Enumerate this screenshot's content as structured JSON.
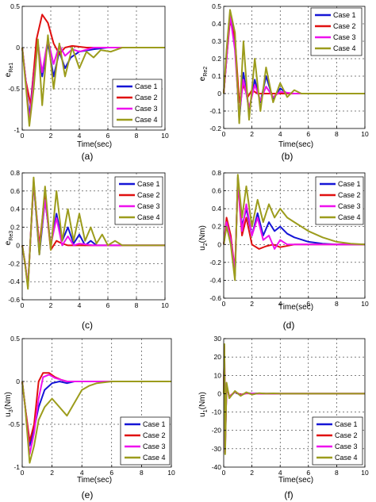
{
  "figure": {
    "panels": [
      {
        "caption": "(a)",
        "xlabel": "Time(sec)",
        "ylabel": "e_{Re1}",
        "ylabel_main": "e",
        "ylabel_sub": "Re1"
      },
      {
        "caption": "(b)",
        "xlabel": "Time(sec)",
        "ylabel": "e_{Re2}",
        "ylabel_main": "e",
        "ylabel_sub": "Re2"
      },
      {
        "caption": "(c)",
        "xlabel": "",
        "ylabel": "e_{Re3}",
        "ylabel_main": "e",
        "ylabel_sub": "Re3"
      },
      {
        "caption": "(d)",
        "xlabel": "Time(sec)",
        "ylabel": "u_2(Nm)",
        "ylabel_main": "u",
        "ylabel_sub": "2",
        "ylabel_tail": "(Nm)"
      },
      {
        "caption": "(e)",
        "xlabel": "Time(sec)",
        "ylabel": "u_3(Nm)",
        "ylabel_main": "u",
        "ylabel_sub": "3",
        "ylabel_tail": "(Nm)"
      },
      {
        "caption": "(f)",
        "xlabel": "Time(sec)",
        "ylabel": "u_1(Nm)",
        "ylabel_main": "u",
        "ylabel_sub": "1",
        "ylabel_tail": "(Nm)"
      }
    ]
  },
  "colors": {
    "case1": "#1515d6",
    "case2": "#e01010",
    "case3": "#ee11ee",
    "case4": "#9c9c1c",
    "grid": "#000000",
    "axes": "#000000"
  },
  "chart_data": [
    {
      "type": "line",
      "caption": "(a)",
      "xlabel": "Time(sec)",
      "ylabel": "e_{Re1}",
      "xlim": [
        0,
        10
      ],
      "ylim": [
        -1,
        0.5
      ],
      "xticks": [
        "0",
        "2",
        "4",
        "6",
        "8",
        "10"
      ],
      "yticks": [
        "-1",
        "-0.5",
        "0",
        "0.5"
      ],
      "grid": true,
      "legend_position": "bottom-right",
      "series": [
        {
          "name": "Case 1",
          "x": [
            0,
            0.25,
            0.5,
            0.8,
            1.1,
            1.4,
            1.8,
            2.2,
            2.6,
            3.0,
            3.4,
            4.0,
            5,
            6,
            10
          ],
          "y": [
            0,
            -0.4,
            -0.85,
            -0.3,
            0.05,
            -0.35,
            0.05,
            -0.35,
            -0.05,
            -0.25,
            -0.12,
            -0.05,
            -0.02,
            0,
            0
          ]
        },
        {
          "name": "Case 2",
          "x": [
            0,
            0.25,
            0.6,
            1.0,
            1.4,
            1.8,
            2.2,
            2.6,
            3.0,
            3.5,
            4.5,
            5.5,
            10
          ],
          "y": [
            0,
            -0.4,
            -0.7,
            0.1,
            0.4,
            0.3,
            0.05,
            -0.08,
            0.0,
            0.02,
            0,
            0,
            0
          ]
        },
        {
          "name": "Case 3",
          "x": [
            0,
            0.25,
            0.5,
            0.8,
            1.1,
            1.4,
            1.8,
            2.2,
            2.6,
            3.0,
            3.5,
            4.0,
            5,
            6,
            10
          ],
          "y": [
            0,
            -0.4,
            -0.9,
            -0.4,
            0.05,
            -0.3,
            0.1,
            -0.2,
            0.03,
            -0.1,
            -0.02,
            -0.05,
            0,
            0,
            0
          ]
        },
        {
          "name": "Case 4",
          "x": [
            0,
            0.25,
            0.5,
            0.8,
            1.1,
            1.4,
            1.8,
            2.2,
            2.6,
            3.0,
            3.5,
            4.0,
            4.5,
            5.0,
            5.5,
            6.2,
            7,
            10
          ],
          "y": [
            0,
            -0.45,
            -0.95,
            -0.5,
            0.1,
            -0.7,
            0.15,
            -0.5,
            0.05,
            -0.35,
            0.0,
            -0.25,
            -0.05,
            -0.12,
            -0.03,
            -0.05,
            0,
            0
          ]
        }
      ]
    },
    {
      "type": "line",
      "caption": "(b)",
      "xlabel": "Time(sec)",
      "ylabel": "e_{Re2}",
      "xlim": [
        0,
        10
      ],
      "ylim": [
        -0.2,
        0.5
      ],
      "xticks": [
        "0",
        "2",
        "4",
        "6",
        "8",
        "10"
      ],
      "yticks": [
        "-0.2",
        "-0.1",
        "0",
        "0.1",
        "0.2",
        "0.3",
        "0.4",
        "0.5"
      ],
      "grid": true,
      "legend_position": "top-right",
      "series": [
        {
          "name": "Case 1",
          "x": [
            0,
            0.2,
            0.45,
            0.8,
            1.1,
            1.4,
            1.8,
            2.2,
            2.6,
            3.0,
            3.5,
            4.0,
            4.5,
            5.5,
            10
          ],
          "y": [
            0,
            0.2,
            0.45,
            0.3,
            -0.15,
            0.12,
            -0.1,
            0.08,
            -0.05,
            0.1,
            -0.03,
            0.03,
            0.0,
            0,
            0
          ]
        },
        {
          "name": "Case 2",
          "x": [
            0,
            0.2,
            0.45,
            0.8,
            1.1,
            1.4,
            1.7,
            2.0,
            2.4,
            3.0,
            4,
            10
          ],
          "y": [
            0,
            0.2,
            0.42,
            0.32,
            -0.05,
            0.05,
            -0.02,
            0.02,
            0.0,
            0,
            0,
            0
          ]
        },
        {
          "name": "Case 3",
          "x": [
            0,
            0.2,
            0.45,
            0.8,
            1.1,
            1.4,
            1.8,
            2.2,
            2.6,
            3.0,
            3.5,
            4.0,
            5,
            10
          ],
          "y": [
            0,
            0.2,
            0.45,
            0.25,
            -0.12,
            0.08,
            -0.08,
            0.05,
            -0.04,
            0.04,
            -0.02,
            0.01,
            0,
            0
          ]
        },
        {
          "name": "Case 4",
          "x": [
            0,
            0.2,
            0.45,
            0.8,
            1.1,
            1.4,
            1.8,
            2.2,
            2.6,
            3.0,
            3.5,
            4.0,
            4.5,
            5.0,
            5.5,
            10
          ],
          "y": [
            0,
            0.25,
            0.48,
            0.35,
            -0.17,
            0.3,
            -0.15,
            0.2,
            -0.1,
            0.15,
            -0.05,
            0.06,
            -0.02,
            0.02,
            0,
            0
          ]
        }
      ]
    },
    {
      "type": "line",
      "caption": "(c)",
      "xlabel": "",
      "ylabel": "e_{Re3}",
      "xlim": [
        0,
        10
      ],
      "ylim": [
        -0.6,
        0.8
      ],
      "xticks": [
        "0",
        "2",
        "4",
        "6",
        "8",
        "10"
      ],
      "yticks": [
        "-0.6",
        "-0.4",
        "-0.2",
        "0",
        "0.2",
        "0.4",
        "0.6",
        "0.8"
      ],
      "grid": true,
      "legend_position": "top-right",
      "series": [
        {
          "name": "Case 1",
          "x": [
            0,
            0.2,
            0.4,
            0.8,
            1.2,
            1.6,
            2.0,
            2.4,
            2.8,
            3.2,
            3.6,
            4.0,
            4.4,
            4.8,
            5.2,
            6.0,
            10
          ],
          "y": [
            0,
            -0.2,
            -0.45,
            0.7,
            -0.1,
            0.5,
            0.0,
            0.35,
            0.05,
            0.2,
            0.02,
            0.12,
            0.0,
            0.05,
            0.0,
            0,
            0
          ]
        },
        {
          "name": "Case 2",
          "x": [
            0,
            0.2,
            0.4,
            0.8,
            1.2,
            1.6,
            2.0,
            2.4,
            2.8,
            3.2,
            4.0,
            5.0,
            10
          ],
          "y": [
            0,
            -0.2,
            -0.45,
            0.7,
            0.0,
            0.55,
            -0.05,
            0.05,
            0.02,
            0.0,
            0,
            0,
            0
          ]
        },
        {
          "name": "Case 3",
          "x": [
            0,
            0.2,
            0.4,
            0.8,
            1.2,
            1.6,
            2.0,
            2.4,
            2.8,
            3.2,
            3.6,
            4.0,
            5.0,
            10
          ],
          "y": [
            0,
            -0.2,
            -0.45,
            0.72,
            -0.05,
            0.5,
            0.0,
            0.3,
            0.0,
            0.1,
            0.0,
            0.02,
            0,
            0
          ]
        },
        {
          "name": "Case 4",
          "x": [
            0,
            0.2,
            0.4,
            0.8,
            1.2,
            1.6,
            2.0,
            2.4,
            2.8,
            3.2,
            3.6,
            4.0,
            4.4,
            4.8,
            5.2,
            5.6,
            6.0,
            6.5,
            7.0,
            10
          ],
          "y": [
            0,
            -0.2,
            -0.48,
            0.75,
            -0.1,
            0.65,
            -0.05,
            0.6,
            0.05,
            0.4,
            0.05,
            0.35,
            0.05,
            0.2,
            0.02,
            0.12,
            0.0,
            0.05,
            0.0,
            0
          ]
        }
      ]
    },
    {
      "type": "line",
      "caption": "(d)",
      "xlabel": "Time(sec)",
      "ylabel": "u_2(Nm)",
      "xlim": [
        0,
        10
      ],
      "ylim": [
        -0.6,
        0.8
      ],
      "xticks": [
        "0",
        "2",
        "4",
        "6",
        "8",
        "10"
      ],
      "yticks": [
        "-0.6",
        "-0.4",
        "-0.2",
        "0",
        "0.2",
        "0.4",
        "0.6",
        "0.8"
      ],
      "grid": true,
      "legend_position": "top-right",
      "series": [
        {
          "name": "Case 1",
          "x": [
            0,
            0.2,
            0.5,
            0.8,
            1.0,
            1.3,
            1.6,
            2.0,
            2.4,
            2.8,
            3.2,
            3.6,
            4.0,
            4.5,
            5.0,
            6.0,
            7.0,
            8.0,
            10
          ],
          "y": [
            0,
            0.25,
            0.05,
            -0.35,
            0.75,
            0.2,
            0.4,
            0.1,
            0.35,
            0.1,
            0.25,
            0.15,
            0.2,
            0.12,
            0.08,
            0.03,
            0.01,
            0,
            0
          ]
        },
        {
          "name": "Case 2",
          "x": [
            0,
            0.2,
            0.5,
            0.8,
            1.0,
            1.3,
            1.6,
            2.0,
            2.5,
            3.0,
            3.5,
            4.0,
            5.0,
            10
          ],
          "y": [
            0,
            0.3,
            0.1,
            -0.3,
            0.7,
            0.1,
            0.3,
            0.0,
            -0.05,
            -0.02,
            0.0,
            -0.03,
            0,
            0
          ]
        },
        {
          "name": "Case 3",
          "x": [
            0,
            0.2,
            0.5,
            0.8,
            1.0,
            1.3,
            1.6,
            2.0,
            2.4,
            2.8,
            3.2,
            3.6,
            4.0,
            4.5,
            10
          ],
          "y": [
            0,
            0.25,
            0.05,
            -0.3,
            0.72,
            0.15,
            0.45,
            0.1,
            0.3,
            0.05,
            0.1,
            -0.05,
            0.05,
            0.0,
            0
          ]
        },
        {
          "name": "Case 4",
          "x": [
            0,
            0.2,
            0.5,
            0.8,
            1.0,
            1.3,
            1.6,
            2.0,
            2.4,
            2.8,
            3.2,
            3.6,
            4.0,
            4.5,
            5.0,
            6.0,
            7.0,
            8.0,
            9.0,
            10
          ],
          "y": [
            0,
            0.2,
            0.0,
            -0.4,
            0.78,
            0.3,
            0.65,
            0.2,
            0.5,
            0.25,
            0.45,
            0.3,
            0.4,
            0.3,
            0.25,
            0.15,
            0.08,
            0.03,
            0.01,
            0
          ]
        }
      ]
    },
    {
      "type": "line",
      "caption": "(e)",
      "xlabel": "Time(sec)",
      "ylabel": "u_3(Nm)",
      "xlim": [
        0,
        10
      ],
      "ylim": [
        -1,
        0.5
      ],
      "xticks": [
        "0",
        "2",
        "4",
        "6",
        "8",
        "10"
      ],
      "yticks": [
        "-1",
        "-0.5",
        "0",
        "0.5"
      ],
      "grid": true,
      "legend_position": "bottom-right",
      "series": [
        {
          "name": "Case 1",
          "x": [
            0,
            0.2,
            0.5,
            0.8,
            1.1,
            1.5,
            2.0,
            2.5,
            3.0,
            3.5,
            4.0,
            5.0,
            10
          ],
          "y": [
            0,
            -0.3,
            -0.75,
            -0.55,
            -0.3,
            -0.1,
            -0.02,
            0.0,
            -0.02,
            0.0,
            0.0,
            0,
            0
          ]
        },
        {
          "name": "Case 2",
          "x": [
            0,
            0.2,
            0.5,
            0.8,
            1.1,
            1.4,
            1.8,
            2.2,
            2.6,
            3.0,
            3.5,
            4.0,
            5.0,
            10
          ],
          "y": [
            0,
            -0.3,
            -0.7,
            -0.5,
            0.0,
            0.1,
            0.1,
            0.05,
            0.02,
            0.0,
            0.0,
            0.0,
            0,
            0
          ]
        },
        {
          "name": "Case 3",
          "x": [
            0,
            0.2,
            0.5,
            0.8,
            1.1,
            1.4,
            1.8,
            2.2,
            2.6,
            3.0,
            3.5,
            4.0,
            10
          ],
          "y": [
            0,
            -0.3,
            -0.85,
            -0.6,
            -0.2,
            0.05,
            0.08,
            0.04,
            0.02,
            0.0,
            0.0,
            0.0,
            0
          ]
        },
        {
          "name": "Case 4",
          "x": [
            0,
            0.2,
            0.5,
            0.8,
            1.1,
            1.5,
            2.0,
            2.5,
            3.0,
            3.5,
            4.0,
            4.5,
            5.0,
            6.0,
            10
          ],
          "y": [
            0,
            -0.3,
            -0.95,
            -0.75,
            -0.45,
            -0.3,
            -0.2,
            -0.3,
            -0.4,
            -0.25,
            -0.1,
            -0.05,
            -0.02,
            0,
            0
          ]
        }
      ]
    },
    {
      "type": "line",
      "caption": "(f)",
      "xlabel": "Time(sec)",
      "ylabel": "u_1(Nm)",
      "xlim": [
        0,
        10
      ],
      "ylim": [
        -40,
        30
      ],
      "xticks": [
        "0",
        "2",
        "4",
        "6",
        "8",
        "10"
      ],
      "yticks": [
        "-40",
        "-30",
        "-20",
        "-10",
        "0",
        "10",
        "20",
        "30"
      ],
      "grid": true,
      "legend_position": "bottom-right",
      "series": [
        {
          "name": "Case 1",
          "x": [
            0,
            0.05,
            0.1,
            0.2,
            0.4,
            0.8,
            1.2,
            1.6,
            2.0,
            2.5,
            3.0,
            4.0,
            10
          ],
          "y": [
            0,
            25,
            -30,
            5,
            -2,
            1,
            -1,
            0.5,
            0.0,
            0.2,
            0.0,
            0,
            0
          ]
        },
        {
          "name": "Case 2",
          "x": [
            0,
            0.05,
            0.1,
            0.2,
            0.4,
            0.8,
            1.2,
            1.6,
            2.0,
            2.5,
            3.0,
            10
          ],
          "y": [
            0,
            24,
            -28,
            4,
            -1.5,
            1,
            -0.5,
            0.2,
            0.0,
            0.0,
            0,
            0
          ]
        },
        {
          "name": "Case 3",
          "x": [
            0,
            0.05,
            0.1,
            0.2,
            0.4,
            0.8,
            1.2,
            1.6,
            2.0,
            2.5,
            3.0,
            10
          ],
          "y": [
            0,
            26,
            -32,
            4.5,
            -1.8,
            1.2,
            -0.8,
            0.3,
            0.0,
            0.0,
            0,
            0
          ]
        },
        {
          "name": "Case 4",
          "x": [
            0,
            0.05,
            0.1,
            0.2,
            0.4,
            0.8,
            1.2,
            1.6,
            2.0,
            2.5,
            3.0,
            3.5,
            4.0,
            10
          ],
          "y": [
            0,
            27,
            -33,
            6,
            -2.5,
            1.5,
            -1.2,
            0.8,
            -0.5,
            0.3,
            0.0,
            0.2,
            0.0,
            0
          ]
        }
      ]
    }
  ]
}
